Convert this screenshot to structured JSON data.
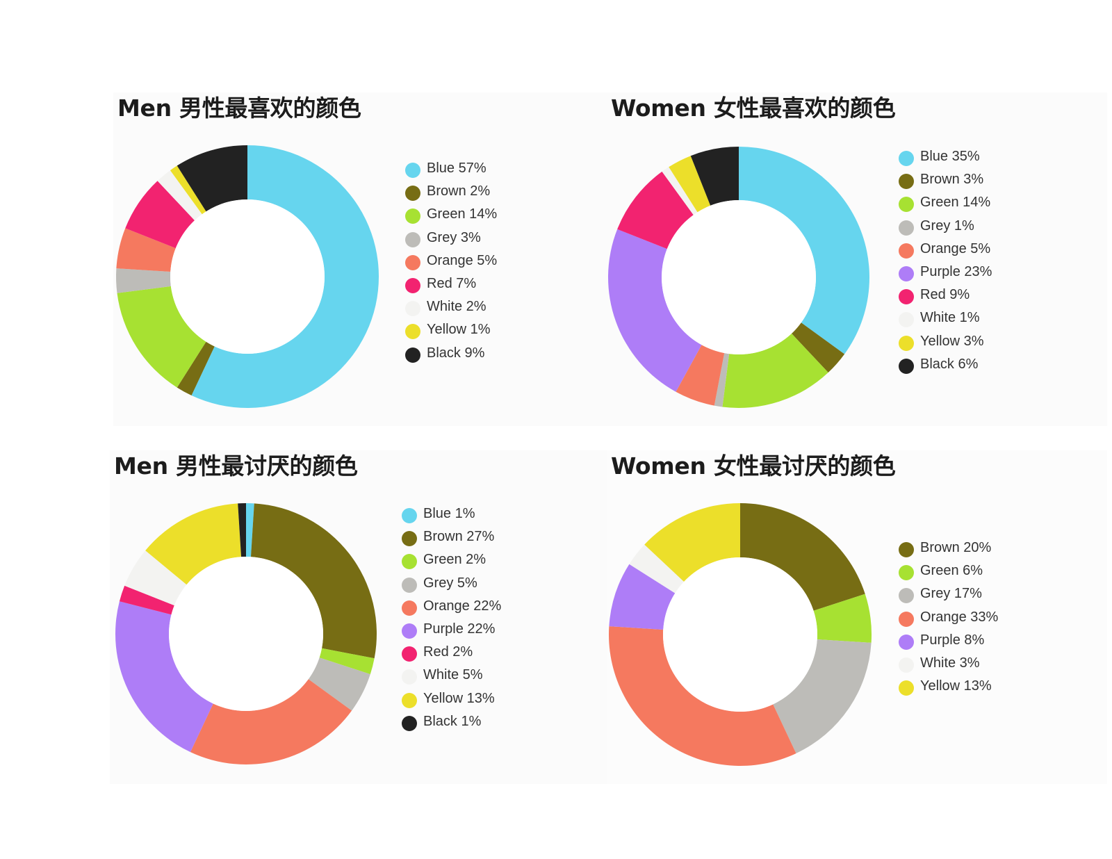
{
  "chart_data": [
    {
      "type": "pie",
      "title": "Men 男性最喜欢的颜色",
      "categories": [
        "Blue",
        "Brown",
        "Green",
        "Grey",
        "Orange",
        "Red",
        "White",
        "Yellow",
        "Black"
      ],
      "values": [
        57,
        2,
        14,
        3,
        5,
        7,
        2,
        1,
        9
      ],
      "legend_labels": [
        "Blue 57%",
        "Brown 2%",
        "Green 14%",
        "Grey 3%",
        "Orange 5%",
        "Red 7%",
        "White 2%",
        "Yellow 1%",
        "Black 9%"
      ],
      "legend_position": "right"
    },
    {
      "type": "pie",
      "title": "Women 女性最喜欢的颜色",
      "categories": [
        "Blue",
        "Brown",
        "Green",
        "Grey",
        "Orange",
        "Purple",
        "Red",
        "White",
        "Yellow",
        "Black"
      ],
      "values": [
        35,
        3,
        14,
        1,
        5,
        23,
        9,
        1,
        3,
        6
      ],
      "legend_labels": [
        "Blue 35%",
        "Brown 3%",
        "Green 14%",
        "Grey 1%",
        "Orange 5%",
        "Purple 23%",
        "Red 9%",
        "White 1%",
        "Yellow 3%",
        "Black 6%"
      ],
      "legend_position": "right"
    },
    {
      "type": "pie",
      "title": "Men 男性最讨厌的颜色",
      "categories": [
        "Blue",
        "Brown",
        "Green",
        "Grey",
        "Orange",
        "Purple",
        "Red",
        "White",
        "Yellow",
        "Black"
      ],
      "values": [
        1,
        27,
        2,
        5,
        22,
        22,
        2,
        5,
        13,
        1
      ],
      "legend_labels": [
        "Blue 1%",
        "Brown 27%",
        "Green 2%",
        "Grey 5%",
        "Orange 22%",
        "Purple 22%",
        "Red 2%",
        "White 5%",
        "Yellow 13%",
        "Black 1%"
      ],
      "legend_position": "right"
    },
    {
      "type": "pie",
      "title": "Women 女性最讨厌的颜色",
      "categories": [
        "Brown",
        "Green",
        "Grey",
        "Orange",
        "Purple",
        "White",
        "Yellow"
      ],
      "values": [
        20,
        6,
        17,
        33,
        8,
        3,
        13
      ],
      "legend_labels": [
        "Brown 20%",
        "Green 6%",
        "Grey 17%",
        "Orange 33%",
        "Purple 8%",
        "White 3%",
        "Yellow 13%"
      ],
      "legend_position": "right"
    }
  ],
  "colors": {
    "Blue": "#66d5ee",
    "Brown": "#776d14",
    "Green": "#a7e132",
    "Grey": "#bdbcb8",
    "Orange": "#f5795f",
    "Purple": "#ae7df7",
    "Red": "#f22370",
    "White": "#f3f3f1",
    "Yellow": "#ecdf2a",
    "Black": "#222222"
  }
}
